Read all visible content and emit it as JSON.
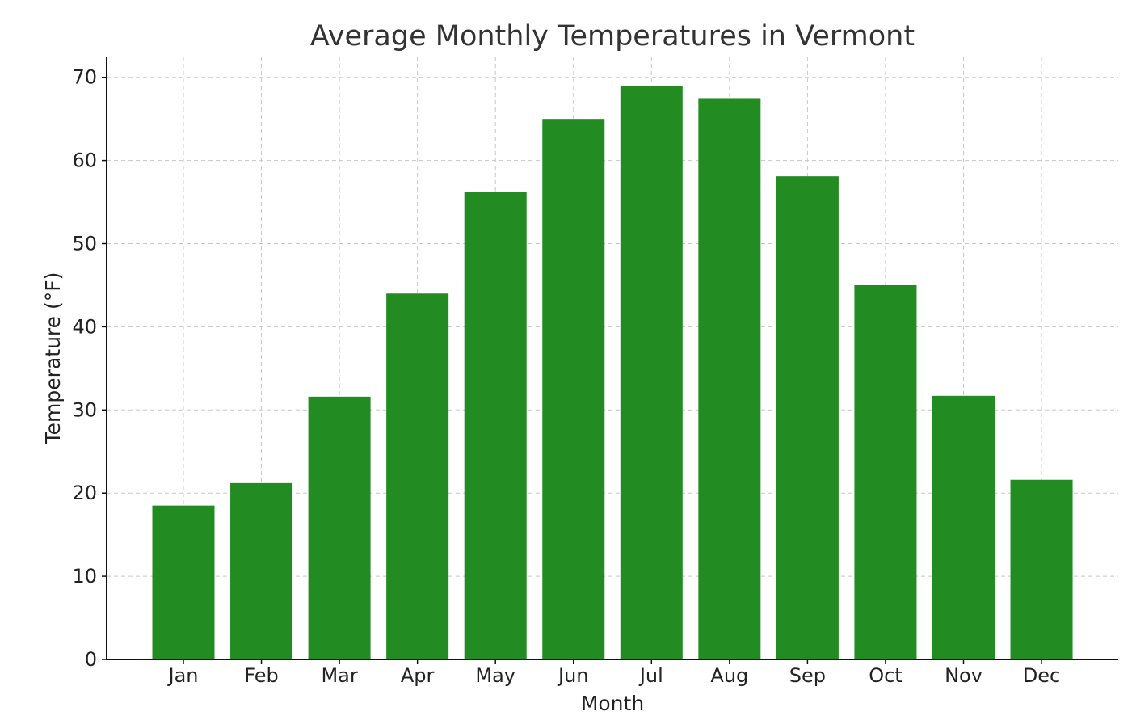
{
  "chart_data": {
    "type": "bar",
    "title": "Average Monthly Temperatures in Vermont",
    "xlabel": "Month",
    "ylabel": "Temperature (°F)",
    "categories": [
      "Jan",
      "Feb",
      "Mar",
      "Apr",
      "May",
      "Jun",
      "Jul",
      "Aug",
      "Sep",
      "Oct",
      "Nov",
      "Dec"
    ],
    "values": [
      18.5,
      21.2,
      31.6,
      44.0,
      56.2,
      65.0,
      69.0,
      67.5,
      58.1,
      45.0,
      31.7,
      21.6
    ],
    "ylim": [
      0,
      72.5
    ],
    "yticks": [
      0,
      10,
      20,
      30,
      40,
      50,
      60,
      70
    ],
    "grid": true,
    "bar_color": "#228b22"
  }
}
